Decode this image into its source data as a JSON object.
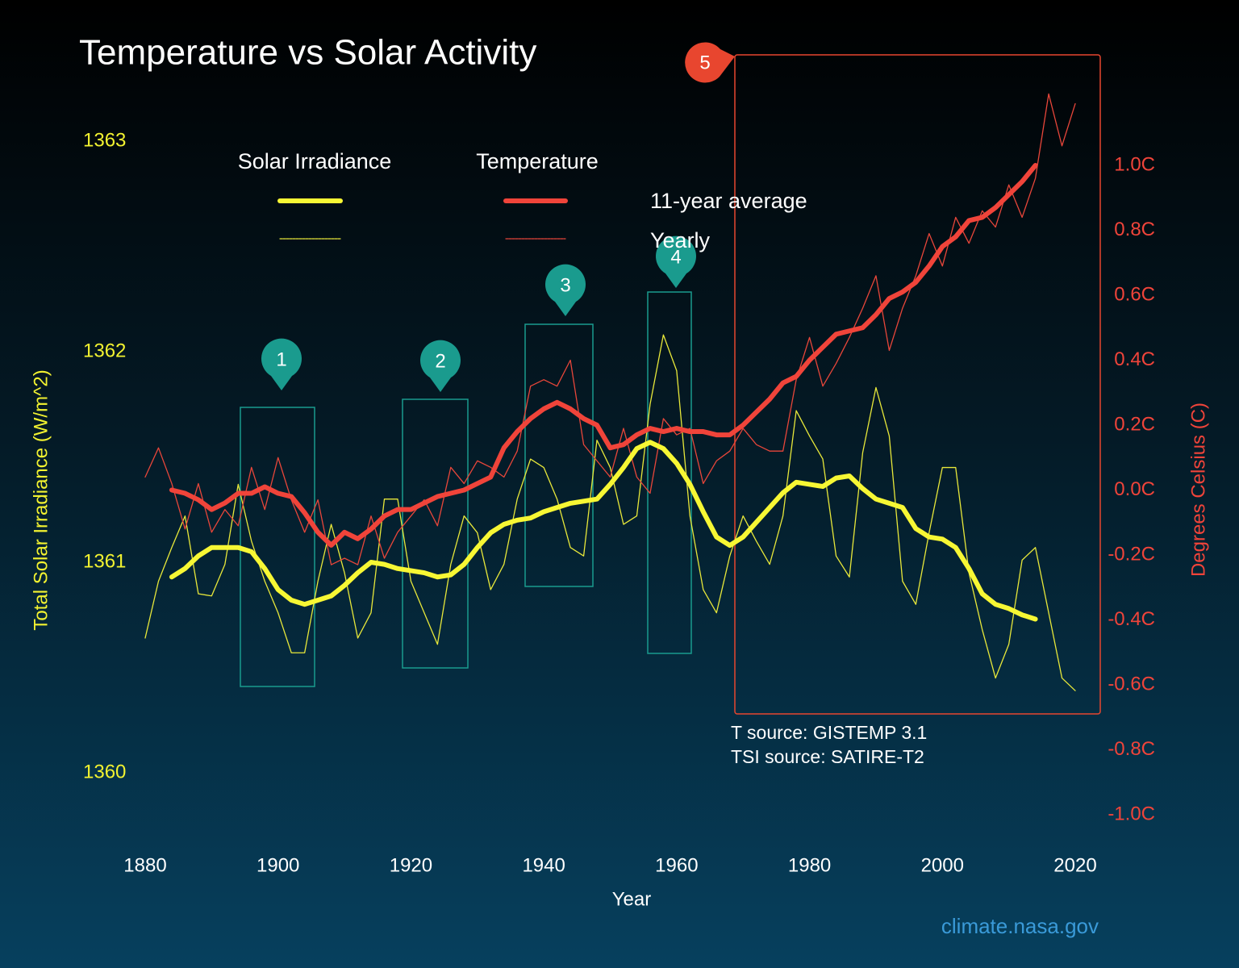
{
  "chart_data": {
    "type": "line",
    "title": "Temperature vs Solar Activity",
    "xlabel": "Year",
    "ylabel": "Total Solar Irradiance (W/m^2)",
    "y2label": "Degrees Celsius (C)",
    "x": [
      1880,
      1882,
      1884,
      1886,
      1888,
      1890,
      1892,
      1894,
      1896,
      1898,
      1900,
      1902,
      1904,
      1906,
      1908,
      1910,
      1912,
      1914,
      1916,
      1918,
      1920,
      1922,
      1924,
      1926,
      1928,
      1930,
      1932,
      1934,
      1936,
      1938,
      1940,
      1942,
      1944,
      1946,
      1948,
      1950,
      1952,
      1954,
      1956,
      1958,
      1960,
      1962,
      1964,
      1966,
      1968,
      1970,
      1972,
      1974,
      1976,
      1978,
      1980,
      1982,
      1984,
      1986,
      1988,
      1990,
      1992,
      1994,
      1996,
      1998,
      2000,
      2002,
      2004,
      2006,
      2008,
      2010,
      2012,
      2014,
      2016,
      2018,
      2020
    ],
    "xlim": [
      1880,
      2020
    ],
    "xticks": [
      1880,
      1900,
      1920,
      1940,
      1960,
      1980,
      2000,
      2020
    ],
    "ylim": [
      1360,
      1363
    ],
    "yticks": [
      1360,
      1361,
      1362,
      1363
    ],
    "y2lim": [
      -1,
      1
    ],
    "y2ticks": [
      {
        "value": -1.0,
        "label": "-1.0C"
      },
      {
        "value": -0.8,
        "label": "-0.8C"
      },
      {
        "value": -0.6,
        "label": "-0.6C"
      },
      {
        "value": -0.4,
        "label": "-0.4C"
      },
      {
        "value": -0.2,
        "label": "-0.2C"
      },
      {
        "value": 0.0,
        "label": "0.0C"
      },
      {
        "value": 0.2,
        "label": "0.2C"
      },
      {
        "value": 0.4,
        "label": "0.4C"
      },
      {
        "value": 0.6,
        "label": "0.6C"
      },
      {
        "value": 0.8,
        "label": "0.8C"
      },
      {
        "value": 1.0,
        "label": "1.0C"
      }
    ],
    "legend": {
      "groups": [
        "Solar Irradiance",
        "Temperature"
      ],
      "rows": [
        "11-year average",
        "Yearly"
      ]
    },
    "series": [
      {
        "color": "#f7f734",
        "axis": "y",
        "values": [
          null,
          null,
          1360.93,
          1360.97,
          1361.03,
          1361.07,
          1361.07,
          1361.07,
          1361.05,
          1360.97,
          1360.87,
          1360.82,
          1360.8,
          1360.82,
          1360.84,
          1360.89,
          1360.95,
          1361.0,
          1360.99,
          1360.97,
          1360.96,
          1360.95,
          1360.93,
          1360.94,
          1360.99,
          1361.07,
          1361.14,
          1361.18,
          1361.2,
          1361.21,
          1361.24,
          1361.26,
          1361.28,
          1361.29,
          1361.3,
          1361.37,
          1361.45,
          1361.54,
          1361.57,
          1361.54,
          1361.47,
          1361.37,
          1361.24,
          1361.12,
          1361.08,
          1361.12,
          1361.19,
          1361.26,
          1361.33,
          1361.38,
          1361.37,
          1361.36,
          1361.4,
          1361.41,
          1361.35,
          1361.3,
          1361.28,
          1361.26,
          1361.16,
          1361.12,
          1361.11,
          1361.07,
          1360.97,
          1360.85,
          1360.8,
          1360.78,
          1360.75,
          1360.73,
          null,
          null,
          null
        ]
      },
      {
        "color": "#e8e83a",
        "axis": "y",
        "values": [
          1360.64,
          1360.91,
          1361.07,
          1361.22,
          1360.85,
          1360.84,
          1360.99,
          1361.37,
          1361.1,
          1360.91,
          1360.76,
          1360.57,
          1360.57,
          1360.91,
          1361.18,
          1360.95,
          1360.64,
          1360.76,
          1361.3,
          1361.3,
          1360.91,
          1360.76,
          1360.61,
          1360.99,
          1361.22,
          1361.14,
          1360.87,
          1360.99,
          1361.3,
          1361.49,
          1361.45,
          1361.3,
          1361.07,
          1361.03,
          1361.58,
          1361.45,
          1361.18,
          1361.22,
          1361.75,
          1362.08,
          1361.91,
          1361.22,
          1360.87,
          1360.76,
          1361.03,
          1361.22,
          1361.1,
          1360.99,
          1361.22,
          1361.72,
          1361.6,
          1361.49,
          1361.03,
          1360.93,
          1361.52,
          1361.83,
          1361.6,
          1360.91,
          1360.8,
          1361.14,
          1361.45,
          1361.45,
          1360.95,
          1360.68,
          1360.45,
          1360.61,
          1361.01,
          1361.07,
          1360.76,
          1360.45,
          1360.39
        ]
      },
      {
        "color": "#f0443a",
        "axis": "y2",
        "values": [
          null,
          null,
          0.0,
          -0.01,
          -0.03,
          -0.06,
          -0.04,
          -0.01,
          -0.01,
          0.01,
          -0.01,
          -0.02,
          -0.07,
          -0.13,
          -0.17,
          -0.13,
          -0.15,
          -0.12,
          -0.08,
          -0.06,
          -0.06,
          -0.04,
          -0.02,
          -0.01,
          0.0,
          0.02,
          0.04,
          0.13,
          0.18,
          0.22,
          0.25,
          0.27,
          0.25,
          0.22,
          0.2,
          0.13,
          0.14,
          0.17,
          0.19,
          0.18,
          0.19,
          0.18,
          0.18,
          0.17,
          0.17,
          0.2,
          0.24,
          0.28,
          0.33,
          0.35,
          0.4,
          0.44,
          0.48,
          0.49,
          0.5,
          0.54,
          0.59,
          0.61,
          0.64,
          0.69,
          0.75,
          0.78,
          0.83,
          0.84,
          0.87,
          0.91,
          0.95,
          1.0,
          null,
          null,
          null
        ]
      },
      {
        "color": "#e8463a",
        "axis": "y2",
        "values": [
          0.04,
          0.13,
          0.02,
          -0.12,
          0.02,
          -0.13,
          -0.06,
          -0.11,
          0.07,
          -0.06,
          0.1,
          -0.03,
          -0.13,
          -0.03,
          -0.23,
          -0.21,
          -0.23,
          -0.08,
          -0.21,
          -0.13,
          -0.08,
          -0.03,
          -0.11,
          0.07,
          0.02,
          0.09,
          0.07,
          0.04,
          0.12,
          0.32,
          0.34,
          0.32,
          0.4,
          0.14,
          0.09,
          0.04,
          0.19,
          0.04,
          -0.01,
          0.22,
          0.17,
          0.19,
          0.02,
          0.09,
          0.12,
          0.19,
          0.14,
          0.12,
          0.12,
          0.34,
          0.47,
          0.32,
          0.39,
          0.47,
          0.56,
          0.66,
          0.43,
          0.56,
          0.66,
          0.79,
          0.69,
          0.84,
          0.76,
          0.86,
          0.81,
          0.94,
          0.84,
          0.96,
          1.22,
          1.06,
          1.19
        ]
      }
    ],
    "annotations": [
      "1",
      "2",
      "3",
      "4",
      "5"
    ],
    "sources": [
      "T source: GISTEMP 3.1",
      "TSI source: SATIRE-T2"
    ],
    "credit": "climate.nasa.gov"
  }
}
